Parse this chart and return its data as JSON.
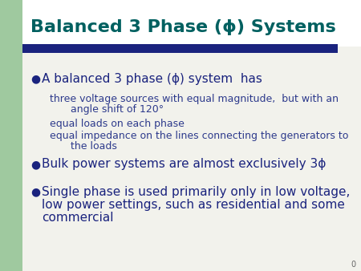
{
  "title": "Balanced 3 Phase (ϕ) Systems",
  "title_color": "#006060",
  "background_color": "#f2f2ec",
  "left_bar_color": "#9fc99f",
  "header_bar_color": "#1a237e",
  "text_color": "#1a237e",
  "sub_text_color": "#2d3a8c",
  "bullet_color": "#1a237e",
  "bullet1": "A balanced 3 phase (ϕ) system  has",
  "bullet2": "Bulk power systems are almost exclusively 3ϕ",
  "bullet3_line1": "Single phase is used primarily only in low voltage,",
  "bullet3_line2": "low power settings, such as residential and some",
  "bullet3_line3": "commercial",
  "sub1_line1": "three voltage sources with equal magnitude,  but with an",
  "sub1_line2": "    angle shift of 120°",
  "sub2": "equal loads on each phase",
  "sub3_line1": "equal impedance on the lines connecting the generators to",
  "sub3_line2": "    the loads",
  "page_number": "0",
  "title_fontsize": 16,
  "bullet_fontsize": 11,
  "sub_fontsize": 9
}
